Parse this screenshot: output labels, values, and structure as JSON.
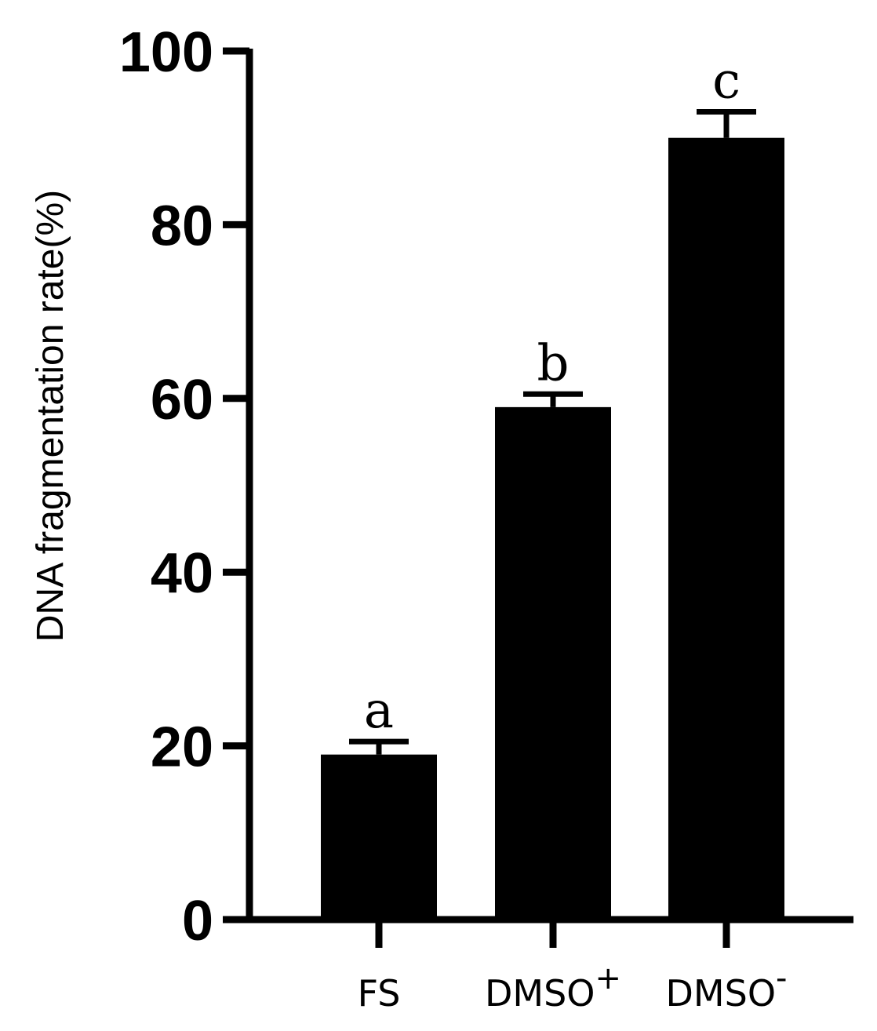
{
  "chart_data": {
    "type": "bar",
    "categories": [
      {
        "label": "FS",
        "sup": ""
      },
      {
        "label": "DMSO",
        "sup": "+"
      },
      {
        "label": "DMSO",
        "sup": "-"
      }
    ],
    "values": [
      19,
      59,
      90
    ],
    "errors": [
      1.5,
      1.5,
      3
    ],
    "significance_letters": [
      "a",
      "b",
      "c"
    ],
    "ylabel": "DNA fragmentation rate(%)",
    "ylim": [
      0,
      100
    ],
    "yticks": [
      0,
      20,
      40,
      60,
      80,
      100
    ],
    "bar_color": "#000000",
    "grid": false,
    "legend": "none"
  }
}
